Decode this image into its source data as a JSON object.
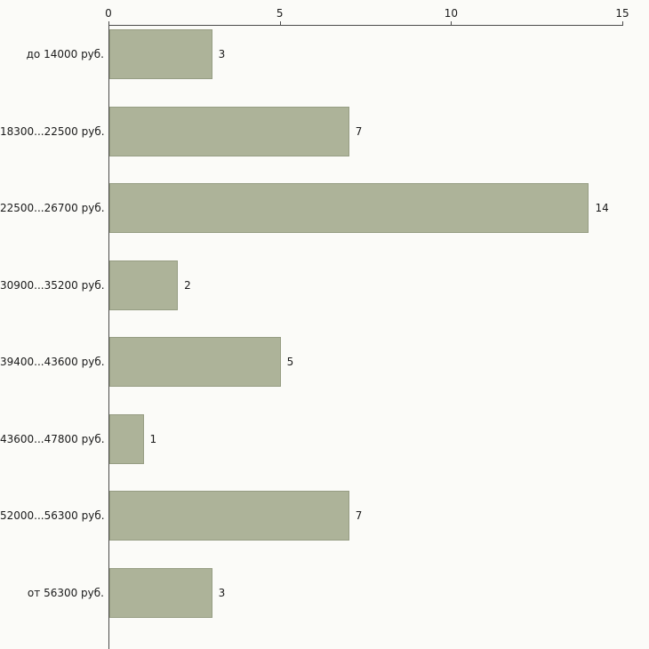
{
  "chart_data": {
    "type": "bar",
    "orientation": "horizontal",
    "title": "",
    "xlabel": "",
    "ylabel": "",
    "categories": [
      "до 14000 руб.",
      "18300...22500 руб.",
      "22500...26700 руб.",
      "30900...35200 руб.",
      "39400...43600 руб.",
      "43600...47800 руб.",
      "52000...56300 руб.",
      "от 56300 руб."
    ],
    "values": [
      3,
      7,
      14,
      2,
      5,
      1,
      7,
      3
    ],
    "value_labels": [
      "3",
      "7",
      "14",
      "2",
      "5",
      "1",
      "7",
      "3"
    ],
    "xlim": [
      0,
      15
    ],
    "xticks": [
      0,
      5,
      10,
      15
    ],
    "xtick_labels": [
      "0",
      "5",
      "10",
      "15"
    ],
    "grid": false,
    "legend": "none",
    "axis_position": "top-left",
    "bar_color": "#adb399",
    "bar_border_color": "#969d83",
    "axis_color": "#4a4a4a",
    "text_color": "#1a1a1a",
    "background_color": "#fbfbf8"
  }
}
